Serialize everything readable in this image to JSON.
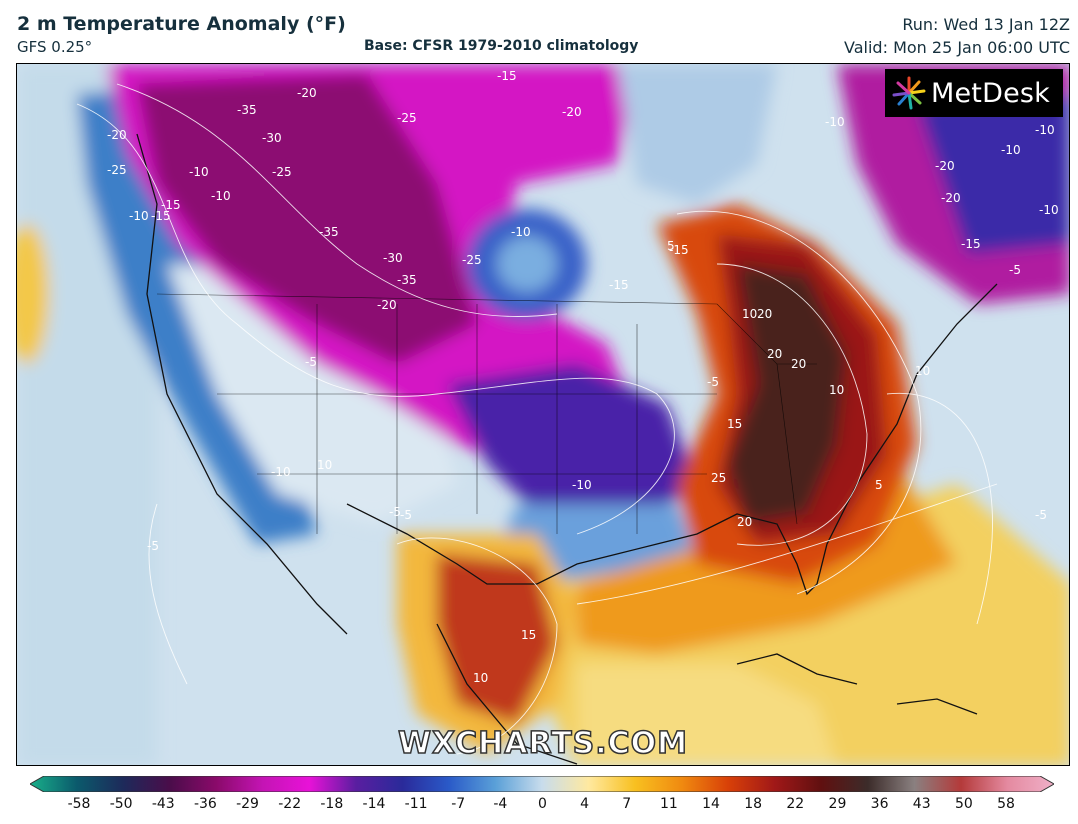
{
  "header": {
    "title": "2 m Temperature Anomaly (°F)",
    "model": "GFS 0.25°",
    "base": "Base: CFSR 1979-2010 climatology",
    "run": "Run: Wed 13 Jan 12Z",
    "valid": "Valid: Mon 25 Jan 06:00 UTC"
  },
  "brand": {
    "name": "MetDesk",
    "icon": "metdesk-starburst-icon"
  },
  "watermark": "WXCHARTS.COM",
  "colorbar": {
    "ticks": [
      "-58",
      "-50",
      "-43",
      "-36",
      "-29",
      "-22",
      "-18",
      "-14",
      "-11",
      "-7",
      "-4",
      "0",
      "4",
      "7",
      "11",
      "14",
      "18",
      "22",
      "29",
      "36",
      "43",
      "50",
      "58"
    ],
    "colors": [
      "#19b08a",
      "#0b5a6c",
      "#1d2a5a",
      "#4a0d4a",
      "#8a0a6a",
      "#c414b4",
      "#e812d8",
      "#5a1ea0",
      "#2a2a9a",
      "#2a5ac8",
      "#5aa0d8",
      "#c8dcec",
      "#ffe9a0",
      "#f8c020",
      "#f08a10",
      "#d84008",
      "#a01818",
      "#601010",
      "#3c2c2a",
      "#8a8080",
      "#b43a3a",
      "#e48aa0",
      "#f0b0c8"
    ]
  },
  "contour_labels": [
    "-15",
    "-20",
    "-35",
    "-25",
    "-20",
    "-25",
    "-30",
    "-25",
    "-20",
    "-35",
    "-30",
    "-20",
    "-35",
    "-25",
    "-10",
    "-15",
    "-10",
    "-10",
    "-10",
    "-10",
    "-15",
    "-15",
    "-5",
    "-10",
    "-5",
    "-10",
    "-10",
    "-5",
    "-5",
    "-5",
    "5",
    "10",
    "10",
    "20",
    "20",
    "20",
    "10",
    "15",
    "25",
    "20",
    "15",
    "10",
    "10",
    "-20",
    "-20",
    "-10",
    "-15",
    "-5",
    "-10",
    "-15",
    "-5",
    "5"
  ]
}
